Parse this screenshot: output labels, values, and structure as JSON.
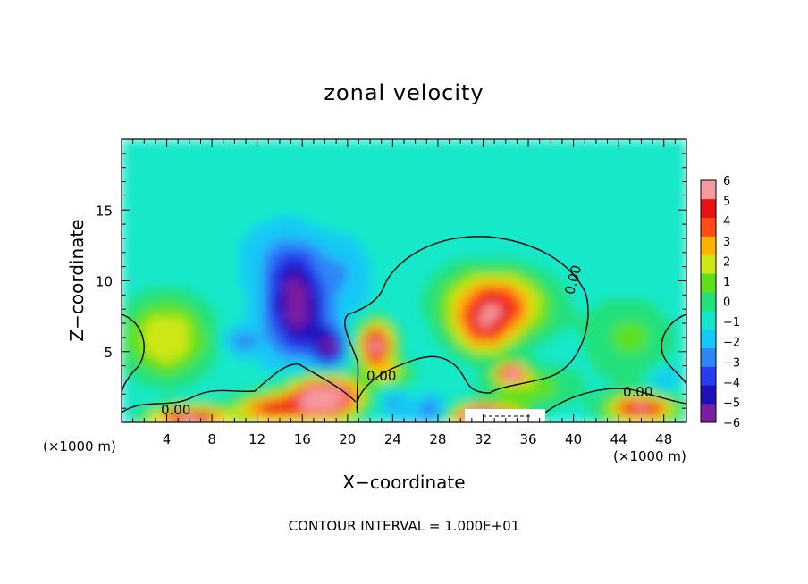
{
  "chart_data": {
    "type": "heatmap",
    "title": "zonal velocity",
    "xlabel": "X−coordinate",
    "ylabel": "Z−coordinate",
    "x_unit_left": "(×1000 m)",
    "x_unit_right": "(×1000 m)",
    "footer": "CONTOUR INTERVAL = 1.000E+01",
    "xlim": [
      0,
      50
    ],
    "ylim": [
      0,
      20
    ],
    "x_ticks": [
      4,
      8,
      12,
      16,
      20,
      24,
      28,
      32,
      36,
      40,
      44,
      48
    ],
    "y_ticks": [
      5,
      10,
      15
    ],
    "colorbar": {
      "ticks": [
        "6",
        "5",
        "4",
        "3",
        "2",
        "1",
        "0",
        "−1",
        "−2",
        "−3",
        "−4",
        "−5",
        "−6"
      ],
      "range": [
        -6,
        6
      ]
    },
    "contour_labels": [
      "0.00",
      "0.00",
      "0.00",
      "0.00"
    ],
    "background_value": -1.3,
    "features": [
      {
        "x": 33,
        "z": 8.3,
        "value": 5,
        "rx": 4.5,
        "rz": 2.4
      },
      {
        "x": 32,
        "z": 6.2,
        "value": 1.8,
        "rx": 2.5,
        "rz": 1.6
      },
      {
        "x": 34.5,
        "z": 3.5,
        "value": 6.5,
        "rx": 1.2,
        "rz": 0.6
      },
      {
        "x": 22.5,
        "z": 5.5,
        "value": 6,
        "rx": 1.6,
        "rz": 1.6
      },
      {
        "x": 15.5,
        "z": 8.2,
        "value": -6.3,
        "rx": 2.6,
        "rz": 3.4
      },
      {
        "x": 14.5,
        "z": 11.5,
        "value": -2.5,
        "rx": 3,
        "rz": 2
      },
      {
        "x": 18.5,
        "z": 5.2,
        "value": -5.5,
        "rx": 1.4,
        "rz": 1.5
      },
      {
        "x": 10.5,
        "z": 5.8,
        "value": -3.5,
        "rx": 1.5,
        "rz": 0.9
      },
      {
        "x": 18,
        "z": 1.8,
        "value": 8,
        "rx": 3.2,
        "rz": 1.5
      },
      {
        "x": 13,
        "z": 1,
        "value": 4,
        "rx": 3,
        "rz": 1
      },
      {
        "x": 6,
        "z": 0.4,
        "value": 6,
        "rx": 3.5,
        "rz": 0.7
      },
      {
        "x": 32,
        "z": 0.4,
        "value": 8,
        "rx": 2.8,
        "rz": 0.8
      },
      {
        "x": 27.5,
        "z": 0.8,
        "value": -4,
        "rx": 1.5,
        "rz": 0.8
      },
      {
        "x": 24,
        "z": 1.5,
        "value": -3,
        "rx": 1.2,
        "rz": 1
      },
      {
        "x": 46,
        "z": 1,
        "value": 5.5,
        "rx": 3,
        "rz": 1
      },
      {
        "x": 48,
        "z": 3,
        "value": -3,
        "rx": 1.2,
        "rz": 0.8
      },
      {
        "x": 4,
        "z": 6,
        "value": 2.5,
        "rx": 4,
        "rz": 3
      },
      {
        "x": 36,
        "z": 2.5,
        "value": 1.5,
        "rx": 4,
        "rz": 1.5
      },
      {
        "x": 24,
        "z": 3.5,
        "value": 1.5,
        "rx": 2,
        "rz": 1
      },
      {
        "x": 20,
        "z": 11,
        "value": -2.5,
        "rx": 2,
        "rz": 2.5
      },
      {
        "x": 25,
        "z": 14,
        "value": -0.5,
        "rx": 6,
        "rz": 3
      },
      {
        "x": 45,
        "z": 6,
        "value": 0.8,
        "rx": 4,
        "rz": 3
      }
    ]
  }
}
